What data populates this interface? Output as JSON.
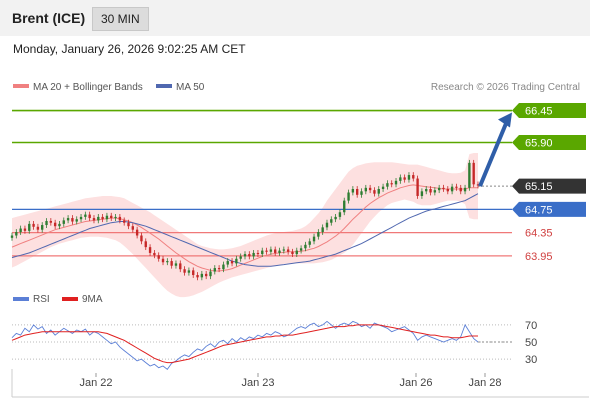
{
  "header": {
    "instrument": "Brent (ICE)",
    "interval": "30 MIN",
    "datetime": "Monday, January 26, 2026 9:02:25 AM CET"
  },
  "legend": {
    "ma20_bb": "MA 20 + Bollinger Bands",
    "ma50": "MA 50",
    "credit": "Research © 2026 Trading Central"
  },
  "colors": {
    "resistance": "#5aa700",
    "pivot": "#3a6ec8",
    "support": "#f07878",
    "last": "#333333",
    "candle_up": "#2e7d32",
    "candle_down": "#c62828",
    "ma20": "#f08080",
    "ma50": "#5068b0",
    "bb_fill": "#fde0e0",
    "arrow": "#2f5ea8",
    "rsi": "#5b7fd6",
    "rsi_ma": "#e02020"
  },
  "chart_data": [
    {
      "type": "candlestick",
      "title": "Brent (ICE)",
      "ylim": [
        63.5,
        66.7
      ],
      "x_ticks": [
        "Jan 22",
        "Jan 23",
        "Jan 26",
        "Jan 28"
      ],
      "levels": [
        {
          "label": "66.45",
          "value": 66.45,
          "kind": "resistance"
        },
        {
          "label": "65.90",
          "value": 65.9,
          "kind": "resistance"
        },
        {
          "label": "65.15",
          "value": 65.15,
          "kind": "last"
        },
        {
          "label": "64.75",
          "value": 64.75,
          "kind": "pivot"
        },
        {
          "label": "64.35",
          "value": 64.35,
          "kind": "support"
        },
        {
          "label": "63.95",
          "value": 63.95,
          "kind": "support"
        }
      ],
      "close": [
        64.3,
        64.36,
        64.42,
        64.38,
        64.5,
        64.45,
        64.4,
        64.48,
        64.55,
        64.52,
        64.46,
        64.5,
        64.56,
        64.6,
        64.54,
        64.58,
        64.62,
        64.66,
        64.6,
        64.56,
        64.62,
        64.58,
        64.64,
        64.6,
        64.62,
        64.56,
        64.52,
        64.46,
        64.4,
        64.3,
        64.2,
        64.1,
        64.0,
        63.96,
        63.9,
        63.84,
        63.86,
        63.78,
        63.82,
        63.72,
        63.66,
        63.7,
        63.62,
        63.58,
        63.64,
        63.6,
        63.68,
        63.74,
        63.72,
        63.8,
        63.86,
        63.82,
        63.9,
        63.94,
        63.98,
        63.94,
        64.0,
        63.98,
        64.04,
        64.02,
        64.06,
        64.0,
        64.04,
        64.06,
        64.02,
        63.98,
        64.04,
        64.08,
        64.14,
        64.2,
        64.28,
        64.36,
        64.44,
        64.52,
        64.58,
        64.62,
        64.7,
        64.9,
        65.04,
        65.1,
        65.0,
        65.06,
        65.12,
        65.08,
        65.02,
        65.1,
        65.14,
        65.2,
        65.18,
        65.24,
        65.3,
        65.26,
        65.34,
        65.28,
        64.98,
        65.06,
        65.1,
        65.04,
        65.08,
        65.12,
        65.1,
        65.06,
        65.14,
        65.12,
        65.06,
        65.12,
        65.55,
        65.18,
        65.16
      ],
      "ma20": [
        64.1,
        64.13,
        64.16,
        64.19,
        64.22,
        64.25,
        64.28,
        64.31,
        64.34,
        64.37,
        64.4,
        64.42,
        64.44,
        64.46,
        64.48,
        64.5,
        64.52,
        64.54,
        64.55,
        64.56,
        64.57,
        64.58,
        64.59,
        64.6,
        64.6,
        64.59,
        64.57,
        64.55,
        64.52,
        64.48,
        64.44,
        64.39,
        64.34,
        64.29,
        64.24,
        64.18,
        64.12,
        64.06,
        64.0,
        63.95,
        63.9,
        63.85,
        63.81,
        63.77,
        63.74,
        63.72,
        63.7,
        63.69,
        63.69,
        63.7,
        63.71,
        63.73,
        63.76,
        63.79,
        63.82,
        63.85,
        63.88,
        63.91,
        63.94,
        63.96,
        63.98,
        63.99,
        64.0,
        64.01,
        64.02,
        64.02,
        64.02,
        64.03,
        64.04,
        64.06,
        64.08,
        64.11,
        64.15,
        64.19,
        64.24,
        64.29,
        64.35,
        64.42,
        64.5,
        64.58,
        64.65,
        64.72,
        64.79,
        64.85,
        64.9,
        64.95,
        64.99,
        65.03,
        65.06,
        65.09,
        65.12,
        65.14,
        65.16,
        65.17,
        65.16,
        65.15,
        65.14,
        65.13,
        65.12,
        65.11,
        65.1,
        65.1,
        65.1,
        65.1,
        65.1,
        65.1,
        65.12,
        65.12,
        65.12
      ],
      "bb_upper": [
        64.6,
        64.62,
        64.64,
        64.66,
        64.68,
        64.7,
        64.72,
        64.74,
        64.76,
        64.78,
        64.8,
        64.82,
        64.84,
        64.86,
        64.88,
        64.9,
        64.92,
        64.94,
        64.95,
        64.96,
        64.97,
        64.98,
        64.98,
        64.98,
        64.97,
        64.96,
        64.94,
        64.9,
        64.86,
        64.82,
        64.78,
        64.74,
        64.7,
        64.65,
        64.6,
        64.55,
        64.5,
        64.45,
        64.4,
        64.35,
        64.3,
        64.25,
        64.2,
        64.15,
        64.12,
        64.1,
        64.08,
        64.07,
        64.06,
        64.06,
        64.07,
        64.08,
        64.1,
        64.12,
        64.15,
        64.18,
        64.21,
        64.24,
        64.27,
        64.3,
        64.32,
        64.34,
        64.35,
        64.36,
        64.37,
        64.38,
        64.4,
        64.42,
        64.46,
        64.52,
        64.6,
        64.68,
        64.78,
        64.9,
        65.0,
        65.1,
        65.2,
        65.3,
        65.4,
        65.46,
        65.5,
        65.52,
        65.54,
        65.55,
        65.56,
        65.56,
        65.56,
        65.56,
        65.56,
        65.55,
        65.54,
        65.53,
        65.52,
        65.52,
        65.52,
        65.5,
        65.48,
        65.46,
        65.44,
        65.42,
        65.4,
        65.38,
        65.37,
        65.37,
        65.38,
        65.42,
        65.7,
        65.72,
        65.72
      ],
      "bb_lower": [
        63.75,
        63.78,
        63.82,
        63.86,
        63.9,
        63.94,
        63.98,
        64.02,
        64.06,
        64.1,
        64.13,
        64.16,
        64.18,
        64.2,
        64.22,
        64.24,
        64.26,
        64.27,
        64.28,
        64.28,
        64.28,
        64.27,
        64.26,
        64.24,
        64.22,
        64.18,
        64.12,
        64.05,
        63.98,
        63.9,
        63.82,
        63.74,
        63.66,
        63.58,
        63.5,
        63.42,
        63.35,
        63.3,
        63.26,
        63.24,
        63.24,
        63.25,
        63.27,
        63.3,
        63.33,
        63.37,
        63.41,
        63.45,
        63.49,
        63.52,
        63.55,
        63.58,
        63.6,
        63.62,
        63.64,
        63.66,
        63.68,
        63.7,
        63.72,
        63.74,
        63.76,
        63.78,
        63.8,
        63.81,
        63.82,
        63.82,
        63.82,
        63.82,
        63.82,
        63.82,
        63.82,
        63.83,
        63.84,
        63.86,
        63.88,
        63.92,
        63.96,
        64.0,
        64.06,
        64.14,
        64.24,
        64.34,
        64.44,
        64.54,
        64.62,
        64.7,
        64.76,
        64.82,
        64.86,
        64.88,
        64.9,
        64.92,
        64.9,
        64.88,
        64.84,
        64.82,
        64.82,
        64.82,
        64.84,
        64.86,
        64.88,
        64.9,
        64.9,
        64.9,
        64.88,
        64.84,
        64.6,
        64.58,
        64.58
      ],
      "ma50": [
        63.92,
        63.94,
        63.96,
        63.98,
        64.0,
        64.03,
        64.06,
        64.09,
        64.12,
        64.15,
        64.18,
        64.21,
        64.24,
        64.27,
        64.3,
        64.33,
        64.36,
        64.39,
        64.42,
        64.44,
        64.46,
        64.48,
        64.5,
        64.52,
        64.53,
        64.54,
        64.54,
        64.53,
        64.52,
        64.5,
        64.48,
        64.46,
        64.43,
        64.4,
        64.37,
        64.34,
        64.31,
        64.28,
        64.25,
        64.22,
        64.19,
        64.16,
        64.13,
        64.1,
        64.07,
        64.04,
        64.01,
        63.98,
        63.95,
        63.92,
        63.89,
        63.86,
        63.84,
        63.82,
        63.8,
        63.79,
        63.78,
        63.77,
        63.77,
        63.77,
        63.77,
        63.78,
        63.79,
        63.8,
        63.81,
        63.82,
        63.83,
        63.84,
        63.85,
        63.86,
        63.88,
        63.9,
        63.92,
        63.94,
        63.96,
        63.98,
        64.01,
        64.04,
        64.07,
        64.1,
        64.13,
        64.16,
        64.2,
        64.24,
        64.28,
        64.32,
        64.36,
        64.4,
        64.44,
        64.48,
        64.52,
        64.56,
        64.6,
        64.63,
        64.66,
        64.69,
        64.72,
        64.74,
        64.76,
        64.78,
        64.8,
        64.82,
        64.84,
        64.86,
        64.88,
        64.9,
        64.94,
        64.98,
        65.02
      ],
      "projection": {
        "from": 65.15,
        "to": 66.45
      }
    },
    {
      "type": "line",
      "title": "RSI",
      "ylim": [
        15,
        85
      ],
      "y_ticks": [
        70,
        50,
        30
      ],
      "series": [
        {
          "name": "RSI",
          "values": [
            55,
            60,
            58,
            66,
            62,
            70,
            65,
            68,
            60,
            64,
            58,
            62,
            66,
            63,
            60,
            64,
            62,
            65,
            58,
            62,
            60,
            56,
            52,
            48,
            50,
            44,
            40,
            36,
            32,
            28,
            30,
            26,
            22,
            24,
            20,
            22,
            18,
            25,
            28,
            32,
            35,
            33,
            38,
            42,
            40,
            45,
            48,
            44,
            50,
            52,
            48,
            54,
            50,
            55,
            52,
            56,
            54,
            58,
            56,
            60,
            58,
            62,
            60,
            56,
            58,
            62,
            66,
            68,
            66,
            70,
            72,
            68,
            70,
            74,
            70,
            66,
            70,
            72,
            70,
            74,
            72,
            68,
            70,
            66,
            72,
            70,
            68,
            66,
            62,
            64,
            66,
            68,
            64,
            60,
            52,
            56,
            58,
            56,
            54,
            52,
            50,
            52,
            54,
            52,
            56,
            70,
            62,
            54,
            50
          ]
        },
        {
          "name": "9MA",
          "values": [
            52,
            54,
            56,
            58,
            59,
            60,
            61,
            62,
            62,
            62,
            62,
            62,
            62,
            62,
            62,
            62,
            62,
            62,
            62,
            62,
            62,
            61,
            60,
            58,
            56,
            54,
            52,
            49,
            46,
            43,
            40,
            37,
            34,
            31,
            29,
            27,
            26,
            26,
            27,
            28,
            29,
            30,
            32,
            34,
            36,
            38,
            40,
            42,
            44,
            46,
            47,
            48,
            49,
            50,
            51,
            52,
            53,
            54,
            55,
            56,
            56,
            57,
            57,
            58,
            58,
            58,
            59,
            60,
            61,
            62,
            63,
            64,
            65,
            66,
            67,
            68,
            68,
            68,
            69,
            69,
            70,
            70,
            70,
            70,
            70,
            70,
            69,
            68,
            67,
            66,
            65,
            64,
            63,
            62,
            61,
            60,
            59,
            58,
            58,
            57,
            56,
            56,
            55,
            55,
            55,
            56,
            57,
            57,
            57
          ]
        }
      ]
    }
  ]
}
